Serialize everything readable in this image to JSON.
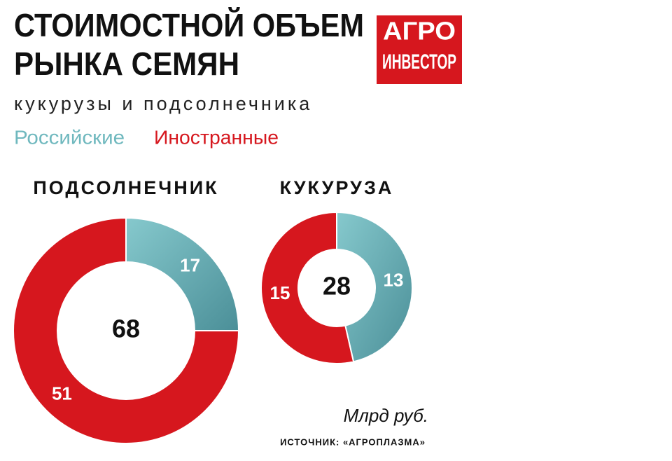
{
  "header": {
    "title": [
      "СТОИМОСТНОЙ ОБЪЕМ",
      "РЫНКА СЕМЯН"
    ],
    "subtitle": "кукурузы и подсолнечника",
    "logo": [
      "АГРО",
      "ИНВЕСТОР"
    ]
  },
  "legend": {
    "labels": [
      "Российские",
      "Иностранные"
    ],
    "colors": [
      "#6fb8be",
      "#d6171e"
    ]
  },
  "chart_data": [
    {
      "type": "pie",
      "donut": true,
      "title": "ПОДСОЛНЕЧНИК",
      "total": 68,
      "values": [
        17,
        51
      ]
    },
    {
      "type": "pie",
      "donut": true,
      "title": "КУКУРУЗА",
      "total": 28,
      "values": [
        13,
        15
      ]
    }
  ],
  "footer": {
    "unit": "Млрд руб.",
    "source": "ИСТОЧНИК: «АГРОПЛАЗМА»"
  }
}
